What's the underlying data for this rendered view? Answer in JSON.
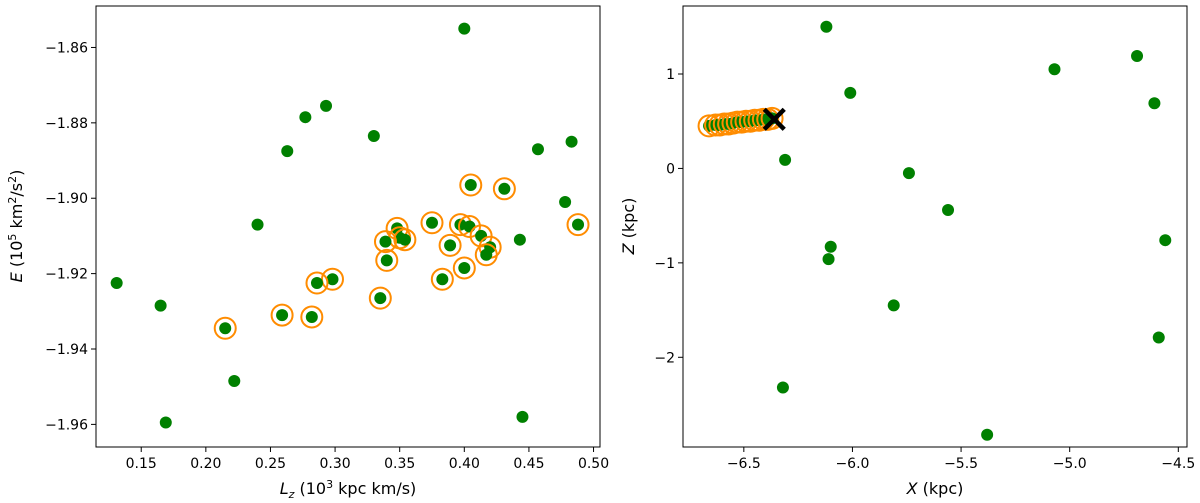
{
  "chart_data": [
    {
      "type": "scatter",
      "title": "",
      "xlabel_main": "L",
      "xlabel_sub": "z",
      "xlabel_unit": " (10",
      "xlabel_sup": "3",
      "xlabel_rest": " kpc km/s)",
      "ylabel_main": "E",
      "ylabel_unit": " (10",
      "ylabel_sup": "5",
      "ylabel_mid": " km",
      "ylabel_sup2": "2",
      "ylabel_mid2": "/s",
      "ylabel_sup3": "2",
      "ylabel_end": ")",
      "xlim": [
        0.115,
        0.505
      ],
      "ylim": [
        -1.966,
        -1.849
      ],
      "xticks": [
        0.15,
        0.2,
        0.25,
        0.3,
        0.35,
        0.4,
        0.45,
        0.5
      ],
      "xtick_labels": [
        "0.15",
        "0.20",
        "0.25",
        "0.30",
        "0.35",
        "0.40",
        "0.45",
        "0.50"
      ],
      "yticks": [
        -1.96,
        -1.94,
        -1.92,
        -1.9,
        -1.88,
        -1.86
      ],
      "ytick_labels": [
        "−1.96",
        "−1.94",
        "−1.92",
        "−1.90",
        "−1.88",
        "−1.86"
      ],
      "grid": false,
      "colors": {
        "points": "#008000",
        "highlight": "#ff8c00"
      },
      "series": [
        {
          "role": "all stars",
          "points": [
            [
              0.4,
              -1.855
            ],
            [
              0.293,
              -1.8755
            ],
            [
              0.277,
              -1.8785
            ],
            [
              0.33,
              -1.8835
            ],
            [
              0.263,
              -1.8875
            ],
            [
              0.483,
              -1.885
            ],
            [
              0.457,
              -1.887
            ],
            [
              0.478,
              -1.901
            ],
            [
              0.24,
              -1.907
            ],
            [
              0.443,
              -1.911
            ],
            [
              0.131,
              -1.9225
            ],
            [
              0.165,
              -1.9285
            ],
            [
              0.222,
              -1.9485
            ],
            [
              0.169,
              -1.9595
            ],
            [
              0.445,
              -1.958
            ]
          ]
        },
        {
          "role": "selected stars",
          "points": [
            [
              0.405,
              -1.8965
            ],
            [
              0.431,
              -1.8975
            ],
            [
              0.488,
              -1.907
            ],
            [
              0.375,
              -1.9065
            ],
            [
              0.348,
              -1.908
            ],
            [
              0.397,
              -1.907
            ],
            [
              0.404,
              -1.9075
            ],
            [
              0.413,
              -1.91
            ],
            [
              0.35,
              -1.9105
            ],
            [
              0.354,
              -1.911
            ],
            [
              0.339,
              -1.9115
            ],
            [
              0.42,
              -1.913
            ],
            [
              0.389,
              -1.9125
            ],
            [
              0.417,
              -1.915
            ],
            [
              0.34,
              -1.9165
            ],
            [
              0.4,
              -1.9185
            ],
            [
              0.383,
              -1.9215
            ],
            [
              0.298,
              -1.9215
            ],
            [
              0.286,
              -1.9225
            ],
            [
              0.335,
              -1.9265
            ],
            [
              0.259,
              -1.931
            ],
            [
              0.282,
              -1.9315
            ],
            [
              0.215,
              -1.9345
            ]
          ]
        }
      ]
    },
    {
      "type": "scatter",
      "title": "",
      "xlabel_main": "X",
      "xlabel_rest": " (kpc)",
      "ylabel_main": "Z",
      "ylabel_rest": " (kpc)",
      "xlim": [
        -6.78,
        -4.46
      ],
      "ylim": [
        -2.95,
        1.72
      ],
      "xticks": [
        -6.5,
        -6.0,
        -5.5,
        -5.0,
        -4.5
      ],
      "xtick_labels": [
        "−6.5",
        "−6.0",
        "−5.5",
        "−5.0",
        "−4.5"
      ],
      "yticks": [
        -2,
        -1,
        0,
        1
      ],
      "ytick_labels": [
        "−2",
        "−1",
        "0",
        "1"
      ],
      "grid": false,
      "colors": {
        "points": "#008000",
        "highlight": "#ff8c00",
        "marker": "#000000"
      },
      "series": [
        {
          "role": "all stars",
          "points": [
            [
              -6.12,
              1.5
            ],
            [
              -4.69,
              1.19
            ],
            [
              -5.07,
              1.05
            ],
            [
              -4.61,
              0.69
            ],
            [
              -6.01,
              0.8
            ],
            [
              -6.31,
              0.09
            ],
            [
              -5.74,
              -0.05
            ],
            [
              -5.56,
              -0.44
            ],
            [
              -4.56,
              -0.76
            ],
            [
              -6.1,
              -0.83
            ],
            [
              -6.11,
              -0.96
            ],
            [
              -5.81,
              -1.45
            ],
            [
              -4.59,
              -1.79
            ],
            [
              -6.32,
              -2.32
            ],
            [
              -5.38,
              -2.82
            ]
          ]
        },
        {
          "role": "selected stars",
          "points": [
            [
              -6.66,
              0.45
            ],
            [
              -6.63,
              0.46
            ],
            [
              -6.61,
              0.46
            ],
            [
              -6.59,
              0.47
            ],
            [
              -6.57,
              0.47
            ],
            [
              -6.55,
              0.48
            ],
            [
              -6.53,
              0.49
            ],
            [
              -6.51,
              0.49
            ],
            [
              -6.49,
              0.5
            ],
            [
              -6.47,
              0.5
            ],
            [
              -6.45,
              0.51
            ],
            [
              -6.43,
              0.51
            ],
            [
              -6.41,
              0.52
            ],
            [
              -6.39,
              0.52
            ],
            [
              -6.37,
              0.53
            ]
          ]
        },
        {
          "role": "reference position",
          "marker": "x",
          "points": [
            [
              -6.36,
              0.52
            ]
          ]
        }
      ]
    }
  ]
}
